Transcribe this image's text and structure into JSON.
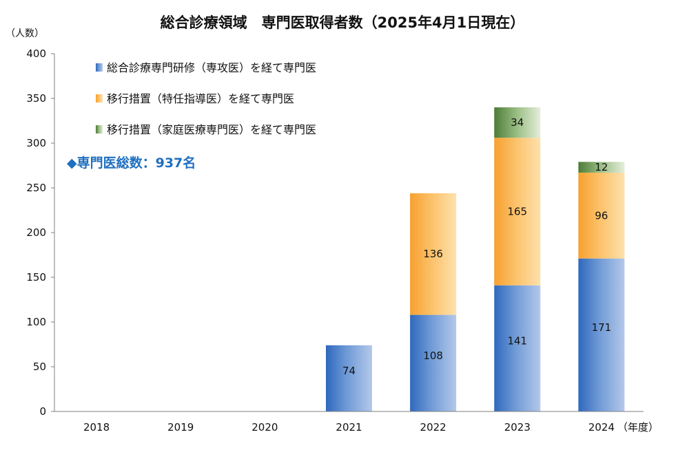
{
  "chart_data": {
    "type": "bar",
    "stacked": true,
    "title": "総合診療領域　専門医取得者数（2025年4月1日現在）",
    "y_unit": "（人数）",
    "x_unit": "（年度）",
    "categories": [
      "2018",
      "2019",
      "2020",
      "2021",
      "2022",
      "2023",
      "2024"
    ],
    "ylim": [
      0,
      400
    ],
    "yticks": [
      0,
      50,
      100,
      150,
      200,
      250,
      300,
      350,
      400
    ],
    "grid": false,
    "legend_position": "top-left",
    "series": [
      {
        "name": "総合診療専門研修（専攻医）を経て専門医",
        "values": [
          null,
          null,
          null,
          74,
          108,
          141,
          171
        ],
        "color": "#2e6cc0"
      },
      {
        "name": "移行措置（特任指導医）を経て専門医",
        "values": [
          null,
          null,
          null,
          null,
          136,
          165,
          96
        ],
        "color": "#f7a030"
      },
      {
        "name": "移行措置（家庭医療専門医）を経て専門医",
        "values": [
          null,
          null,
          null,
          null,
          null,
          34,
          12
        ],
        "color": "#4f7f3a"
      }
    ],
    "annotation": "◆専門医総数：937名"
  }
}
